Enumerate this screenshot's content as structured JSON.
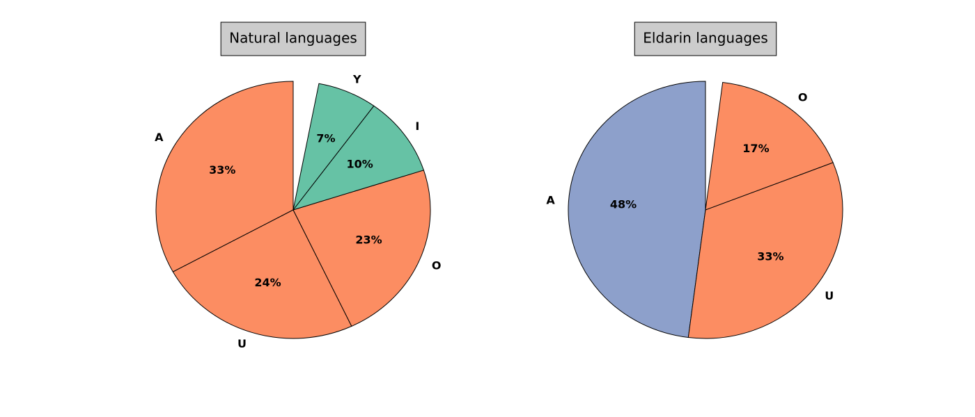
{
  "chart_data": [
    {
      "type": "pie",
      "title": "Natural languages",
      "categories": [
        "A",
        "U",
        "O",
        "I",
        "Y"
      ],
      "values": [
        33,
        24,
        23,
        10,
        7
      ],
      "value_labels": [
        "33%",
        "24%",
        "23%",
        "10%",
        "7%"
      ],
      "colors": [
        "#fc8d62",
        "#fc8d62",
        "#fc8d62",
        "#66c2a5",
        "#66c2a5"
      ]
    },
    {
      "type": "pie",
      "title": "Eldarin languages",
      "categories": [
        "A",
        "U",
        "O"
      ],
      "values": [
        48,
        33,
        17
      ],
      "value_labels": [
        "48%",
        "33%",
        "17%"
      ],
      "colors": [
        "#8da0cb",
        "#fc8d62",
        "#fc8d62"
      ]
    }
  ]
}
